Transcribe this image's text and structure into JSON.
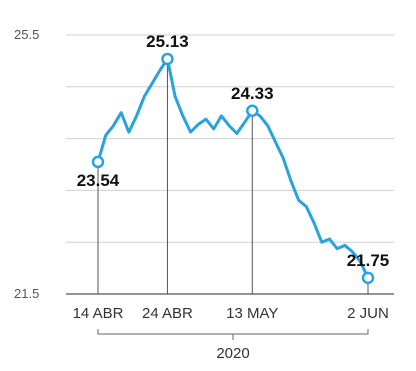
{
  "chart_data": {
    "type": "line",
    "title": "",
    "xlabel": "2020",
    "ylabel": "",
    "ylim": [
      21.5,
      25.5
    ],
    "yticks": [
      21.5,
      25.5
    ],
    "ytick_labels": [
      "21.5",
      "25.5"
    ],
    "grid": true,
    "x_tick_labels": [
      "14 ABR",
      "24 ABR",
      "13 MAY",
      "2 JUN"
    ],
    "year_label": "2020",
    "color": "#29a3de",
    "series": [
      {
        "name": "",
        "values": [
          23.54,
          23.95,
          24.1,
          24.3,
          24.0,
          24.25,
          24.55,
          24.75,
          24.95,
          25.13,
          24.55,
          24.25,
          24.0,
          24.12,
          24.2,
          24.05,
          24.25,
          24.1,
          23.98,
          24.15,
          24.33,
          24.25,
          24.1,
          23.85,
          23.6,
          23.25,
          22.95,
          22.85,
          22.6,
          22.3,
          22.35,
          22.2,
          22.25,
          22.15,
          22.0,
          21.75
        ]
      }
    ],
    "highlighted_points": [
      {
        "index": 0,
        "label": "14 ABR",
        "value": "23.54"
      },
      {
        "index": 9,
        "label": "24 ABR",
        "value": "25.13"
      },
      {
        "index": 20,
        "label": "13 MAY",
        "value": "24.33"
      },
      {
        "index": 35,
        "label": "2 JUN",
        "value": "21.75"
      }
    ]
  }
}
